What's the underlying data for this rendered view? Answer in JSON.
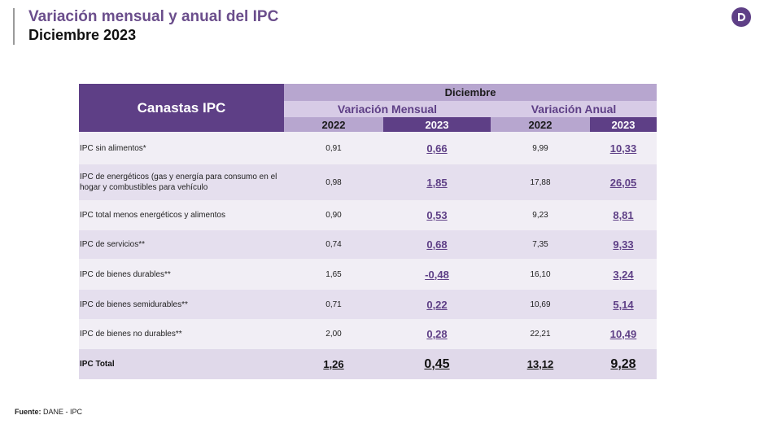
{
  "header": {
    "title": "Variación mensual y anual del IPC",
    "subtitle": "Diciembre 2023",
    "logo_letter": "D"
  },
  "table": {
    "corner_label": "Canastas IPC",
    "period_label": "Diciembre",
    "group_monthly": "Variación Mensual",
    "group_annual": "Variación Anual",
    "years": [
      "2022",
      "2023",
      "2022",
      "2023"
    ],
    "rows": [
      {
        "label": "IPC sin alimentos*",
        "m2022": "0,91",
        "m2023": "0,66",
        "a2022": "9,99",
        "a2023": "10,33"
      },
      {
        "label": "IPC de energéticos (gas y energía para consumo en el hogar y combustibles para vehículo",
        "m2022": "0,98",
        "m2023": "1,85",
        "a2022": "17,88",
        "a2023": "26,05"
      },
      {
        "label": "IPC total menos energéticos y alimentos",
        "m2022": "0,90",
        "m2023": "0,53",
        "a2022": "9,23",
        "a2023": "8,81"
      },
      {
        "label": "IPC de servicios**",
        "m2022": "0,74",
        "m2023": "0,68",
        "a2022": "7,35",
        "a2023": "9,33"
      },
      {
        "label": "IPC de bienes durables**",
        "m2022": "1,65",
        "m2023": "-0,48",
        "a2022": "16,10",
        "a2023": "3,24"
      },
      {
        "label": "IPC de bienes semidurables**",
        "m2022": "0,71",
        "m2023": "0,22",
        "a2022": "10,69",
        "a2023": "5,14"
      },
      {
        "label": "IPC de bienes no durables**",
        "m2022": "2,00",
        "m2023": "0,28",
        "a2022": "22,21",
        "a2023": "10,49"
      }
    ],
    "total": {
      "label": "IPC Total",
      "m2022": "1,26",
      "m2023": "0,45",
      "a2022": "13,12",
      "a2023": "9,28"
    }
  },
  "footer": {
    "source_label": "Fuente:",
    "source_value": "DANE - IPC"
  }
}
